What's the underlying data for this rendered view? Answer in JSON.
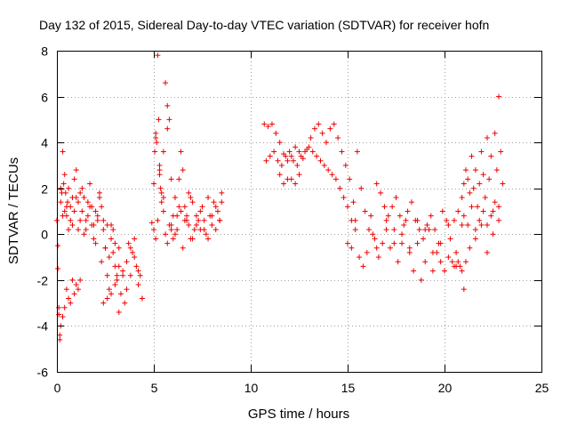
{
  "chart_data": {
    "type": "scatter",
    "title": "Day 132 of 2015, Sidereal Day-to-day VTEC variation (SDTVAR) for receiver hofn",
    "xlabel": "GPS time / hours",
    "ylabel": "SDTVAR / TECUs",
    "xlim": [
      0,
      25
    ],
    "ylim": [
      -6,
      8
    ],
    "x_ticks": [
      0,
      5,
      10,
      15,
      20,
      25
    ],
    "y_ticks": [
      -6,
      -4,
      -2,
      0,
      2,
      4,
      6,
      8
    ],
    "x_tick_labels": [
      "0",
      "5",
      "10",
      "15",
      "20",
      "25"
    ],
    "y_tick_labels": [
      "-6",
      "-4",
      "-2",
      "0",
      "2",
      "4",
      "6",
      "8"
    ],
    "grid": true,
    "marker": "+",
    "color": "#ee0000",
    "series": [
      {
        "name": "SDTVAR",
        "x": [
          0.0,
          0.05,
          0.1,
          0.15,
          0.2,
          0.25,
          0.3,
          0.35,
          0.4,
          0.45,
          0.5,
          0.55,
          0.6,
          0.7,
          0.8,
          0.9,
          1.0,
          1.1,
          1.2,
          1.3,
          1.4,
          1.5,
          1.6,
          1.7,
          1.8,
          1.9,
          2.0,
          2.1,
          2.2,
          2.3,
          2.4,
          2.5,
          2.6,
          2.7,
          2.8,
          2.9,
          3.0,
          3.1,
          3.2,
          3.3,
          3.4,
          3.5,
          3.6,
          3.7,
          3.8,
          3.9,
          4.0,
          4.1,
          4.2,
          4.3,
          4.4,
          0.05,
          0.1,
          0.15,
          0.2,
          0.3,
          0.4,
          0.5,
          0.6,
          0.7,
          0.8,
          0.9,
          1.0,
          1.1,
          1.2,
          0.2,
          0.3,
          0.4,
          0.5,
          0.6,
          0.7,
          0.8,
          0.9,
          1.0,
          1.1,
          1.2,
          1.3,
          1.4,
          1.5,
          1.6,
          1.7,
          1.8,
          1.9,
          2.0,
          2.1,
          2.2,
          2.3,
          2.4,
          2.5,
          2.6,
          2.7,
          2.8,
          2.9,
          3.0,
          3.1,
          3.2,
          2.4,
          2.6,
          2.8,
          3.0,
          3.2,
          3.4,
          3.6,
          3.8,
          4.0,
          4.2,
          4.4,
          4.9,
          5.0,
          5.05,
          5.1,
          5.15,
          5.2,
          5.25,
          5.3,
          5.35,
          5.4,
          5.5,
          5.6,
          5.7,
          5.8,
          5.9,
          6.0,
          6.1,
          6.2,
          6.3,
          6.4,
          6.5,
          6.6,
          6.7,
          6.8,
          6.9,
          7.0,
          7.2,
          7.4,
          7.6,
          7.8,
          8.0,
          8.2,
          8.4,
          8.5,
          5.0,
          5.1,
          5.2,
          5.3,
          5.4,
          5.5,
          5.6,
          5.7,
          5.8,
          5.9,
          6.0,
          6.2,
          6.4,
          6.6,
          6.8,
          7.0,
          7.2,
          7.4,
          7.6,
          7.8,
          8.0,
          8.2,
          8.4,
          5.1,
          5.3,
          5.5,
          5.7,
          5.9,
          6.1,
          6.3,
          6.5,
          6.7,
          6.9,
          7.1,
          7.3,
          7.5,
          7.7,
          7.9,
          8.1,
          8.3,
          8.5,
          10.7,
          10.9,
          11.1,
          11.3,
          11.5,
          11.7,
          11.9,
          12.1,
          12.3,
          12.5,
          12.7,
          12.9,
          13.1,
          13.3,
          13.5,
          13.7,
          13.9,
          14.1,
          14.3,
          14.5,
          14.7,
          14.9,
          15.1,
          15.3,
          15.5,
          15.7,
          15.9,
          16.1,
          16.3,
          16.5,
          10.8,
          11.0,
          11.2,
          11.4,
          11.6,
          11.8,
          12.0,
          12.2,
          12.4,
          12.6,
          12.8,
          13.0,
          13.2,
          13.4,
          13.6,
          13.8,
          14.0,
          14.2,
          14.4,
          14.6,
          14.8,
          15.0,
          15.2,
          15.4,
          11.5,
          11.7,
          11.9,
          12.1,
          12.3,
          12.5,
          15.0,
          15.2,
          15.4,
          15.6,
          15.8,
          16.0,
          16.2,
          16.4,
          16.6,
          16.8,
          17.0,
          17.2,
          17.4,
          17.6,
          17.8,
          18.0,
          18.2,
          18.4,
          18.6,
          18.8,
          19.0,
          19.2,
          19.4,
          19.6,
          19.8,
          20.0,
          20.2,
          20.4,
          20.6,
          20.8,
          21.0,
          16.5,
          16.7,
          16.9,
          17.1,
          17.3,
          17.5,
          17.7,
          17.9,
          18.1,
          18.3,
          18.5,
          18.7,
          18.9,
          19.1,
          19.3,
          19.5,
          19.7,
          19.9,
          20.1,
          20.3,
          20.5,
          20.7,
          20.9,
          17.0,
          17.4,
          17.8,
          18.2,
          18.6,
          19.0,
          19.4,
          19.8,
          20.2,
          20.6,
          20.9,
          21.0,
          21.1,
          21.2,
          21.3,
          21.4,
          21.5,
          21.6,
          21.7,
          21.8,
          21.9,
          22.0,
          22.1,
          22.2,
          22.3,
          22.4,
          22.5,
          22.6,
          22.7,
          22.8,
          22.9,
          23.0,
          21.0,
          21.2,
          21.4,
          21.6,
          21.8,
          22.0,
          22.2,
          22.4,
          22.6,
          22.8,
          21.3,
          21.6,
          21.9,
          22.2,
          22.5,
          22.8,
          20.5,
          20.7,
          20.9,
          21.1
        ],
        "y": [
          0.6,
          -0.5,
          -3.5,
          -4.6,
          2.0,
          1.8,
          3.6,
          2.2,
          1.0,
          1.8,
          0.8,
          1.4,
          2.0,
          1.2,
          0.4,
          2.4,
          1.6,
          0.2,
          1.8,
          1.0,
          0.0,
          0.6,
          1.4,
          2.2,
          1.2,
          0.4,
          -0.4,
          0.8,
          1.6,
          -1.2,
          0.6,
          -0.6,
          -1.8,
          -2.4,
          0.4,
          -0.8,
          -1.4,
          -2.0,
          -0.6,
          -2.6,
          -1.8,
          -3.0,
          -1.2,
          -0.4,
          -1.8,
          -0.8,
          -0.2,
          -1.4,
          -2.2,
          -1.8,
          -2.8,
          -1.5,
          -3.2,
          -4.4,
          -4.0,
          -3.6,
          -3.2,
          -2.4,
          -2.8,
          -3.0,
          -2.0,
          -2.6,
          -2.2,
          -2.4,
          -2.0,
          1.4,
          0.8,
          2.6,
          1.2,
          0.2,
          0.6,
          1.6,
          1.0,
          2.8,
          1.4,
          0.6,
          2.0,
          1.6,
          0.2,
          0.8,
          1.2,
          0.4,
          -0.2,
          1.0,
          0.6,
          1.8,
          1.2,
          0.2,
          -0.6,
          0.4,
          -1.0,
          -0.2,
          0.2,
          -0.4,
          -1.8,
          -1.4,
          -3.0,
          -2.8,
          -2.6,
          -2.2,
          -3.4,
          -1.6,
          -2.4,
          -0.6,
          -1.0,
          -1.6,
          -2.8,
          0.5,
          2.2,
          3.6,
          4.4,
          4.0,
          7.8,
          5.0,
          2.8,
          2.0,
          1.4,
          3.6,
          6.6,
          5.6,
          5.0,
          2.4,
          0.8,
          1.6,
          0.2,
          2.4,
          3.6,
          2.8,
          1.2,
          0.6,
          1.8,
          -0.2,
          1.4,
          0.4,
          1.0,
          0.2,
          1.6,
          0.8,
          1.2,
          0.6,
          1.4,
          0.2,
          -0.2,
          0.6,
          3.0,
          1.8,
          1.6,
          0.0,
          -0.4,
          0.4,
          0.2,
          -0.2,
          0.8,
          1.0,
          0.6,
          0.4,
          -0.2,
          0.8,
          0.2,
          0.6,
          -0.2,
          0.4,
          0.2,
          0.6,
          4.2,
          2.6,
          1.0,
          4.6,
          0.4,
          0.0,
          1.2,
          -0.6,
          0.8,
          1.6,
          0.2,
          0.6,
          1.2,
          0.0,
          0.8,
          1.4,
          1.0,
          1.8,
          4.8,
          4.7,
          4.8,
          4.4,
          4.0,
          3.5,
          3.2,
          3.4,
          3.8,
          3.6,
          3.3,
          3.7,
          4.2,
          4.6,
          4.8,
          4.4,
          4.0,
          4.6,
          4.8,
          4.2,
          3.6,
          3.0,
          2.4,
          1.4,
          3.6,
          2.0,
          1.0,
          0.2,
          0.0,
          -0.6,
          3.2,
          3.4,
          3.6,
          3.2,
          3.0,
          3.4,
          3.6,
          3.2,
          3.0,
          3.4,
          3.6,
          3.8,
          3.6,
          3.4,
          3.2,
          3.0,
          2.8,
          2.6,
          2.4,
          2.0,
          1.6,
          1.2,
          0.6,
          0.2,
          2.6,
          2.2,
          2.4,
          2.4,
          2.2,
          2.6,
          -0.4,
          -0.6,
          0.6,
          -1.0,
          -1.4,
          -0.8,
          0.8,
          -0.2,
          -1.0,
          -0.4,
          0.6,
          -0.6,
          0.2,
          -1.2,
          -0.4,
          0.6,
          -0.8,
          -1.6,
          -0.4,
          -2.0,
          -1.2,
          0.2,
          -1.6,
          -0.8,
          -1.2,
          -1.6,
          -1.0,
          -1.2,
          -1.4,
          -1.4,
          -2.4,
          2.2,
          1.8,
          1.2,
          0.8,
          1.2,
          1.6,
          0.8,
          0.4,
          1.0,
          1.4,
          0.6,
          0.2,
          -0.2,
          0.4,
          0.8,
          0.2,
          -0.4,
          1.0,
          0.6,
          -0.2,
          0.6,
          1.0,
          0.4,
          0.2,
          -0.4,
          0.0,
          -0.6,
          0.6,
          0.2,
          -0.8,
          -0.4,
          0.4,
          -0.8,
          1.6,
          2.2,
          2.8,
          2.4,
          1.8,
          3.4,
          2.0,
          2.8,
          1.2,
          2.2,
          3.6,
          2.6,
          1.6,
          4.2,
          2.4,
          3.4,
          1.0,
          4.4,
          2.8,
          6.0,
          3.6,
          2.2,
          0.8,
          0.4,
          1.2,
          0.2,
          0.6,
          1.0,
          0.4,
          0.8,
          1.4,
          1.2,
          -0.6,
          -0.2,
          0.4,
          -0.8,
          0.0,
          0.6,
          -1.4,
          -1.2,
          -1.6,
          -1.2
        ]
      }
    ]
  }
}
